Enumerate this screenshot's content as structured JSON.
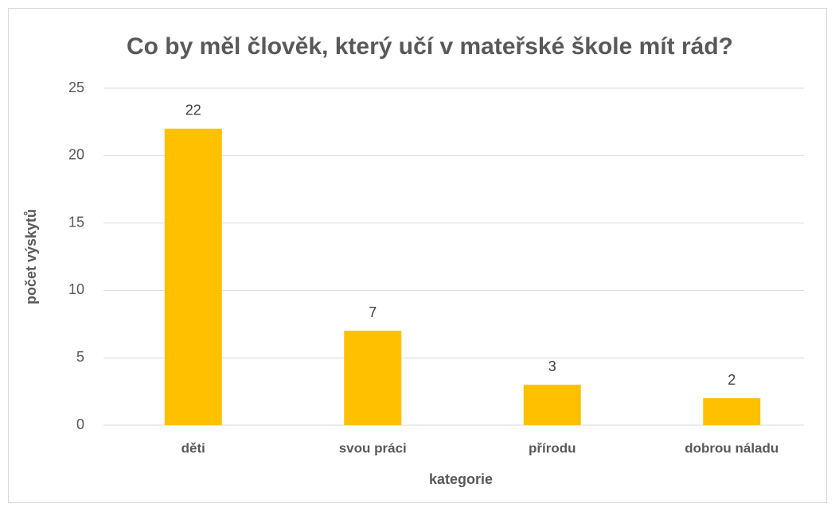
{
  "chart_data": {
    "type": "bar",
    "title": "Co by měl člověk, který učí v mateřské škole mít rád?",
    "x_label": "kategorie",
    "y_label": "počet výskytů",
    "categories": [
      "děti",
      "svou práci",
      "přírodu",
      "dobrou náladu"
    ],
    "values": [
      22,
      7,
      3,
      2
    ],
    "color": "#ffc000",
    "ylim": [
      0,
      25
    ],
    "yticks": [
      0,
      5,
      10,
      15,
      20,
      25
    ],
    "grid": true
  }
}
